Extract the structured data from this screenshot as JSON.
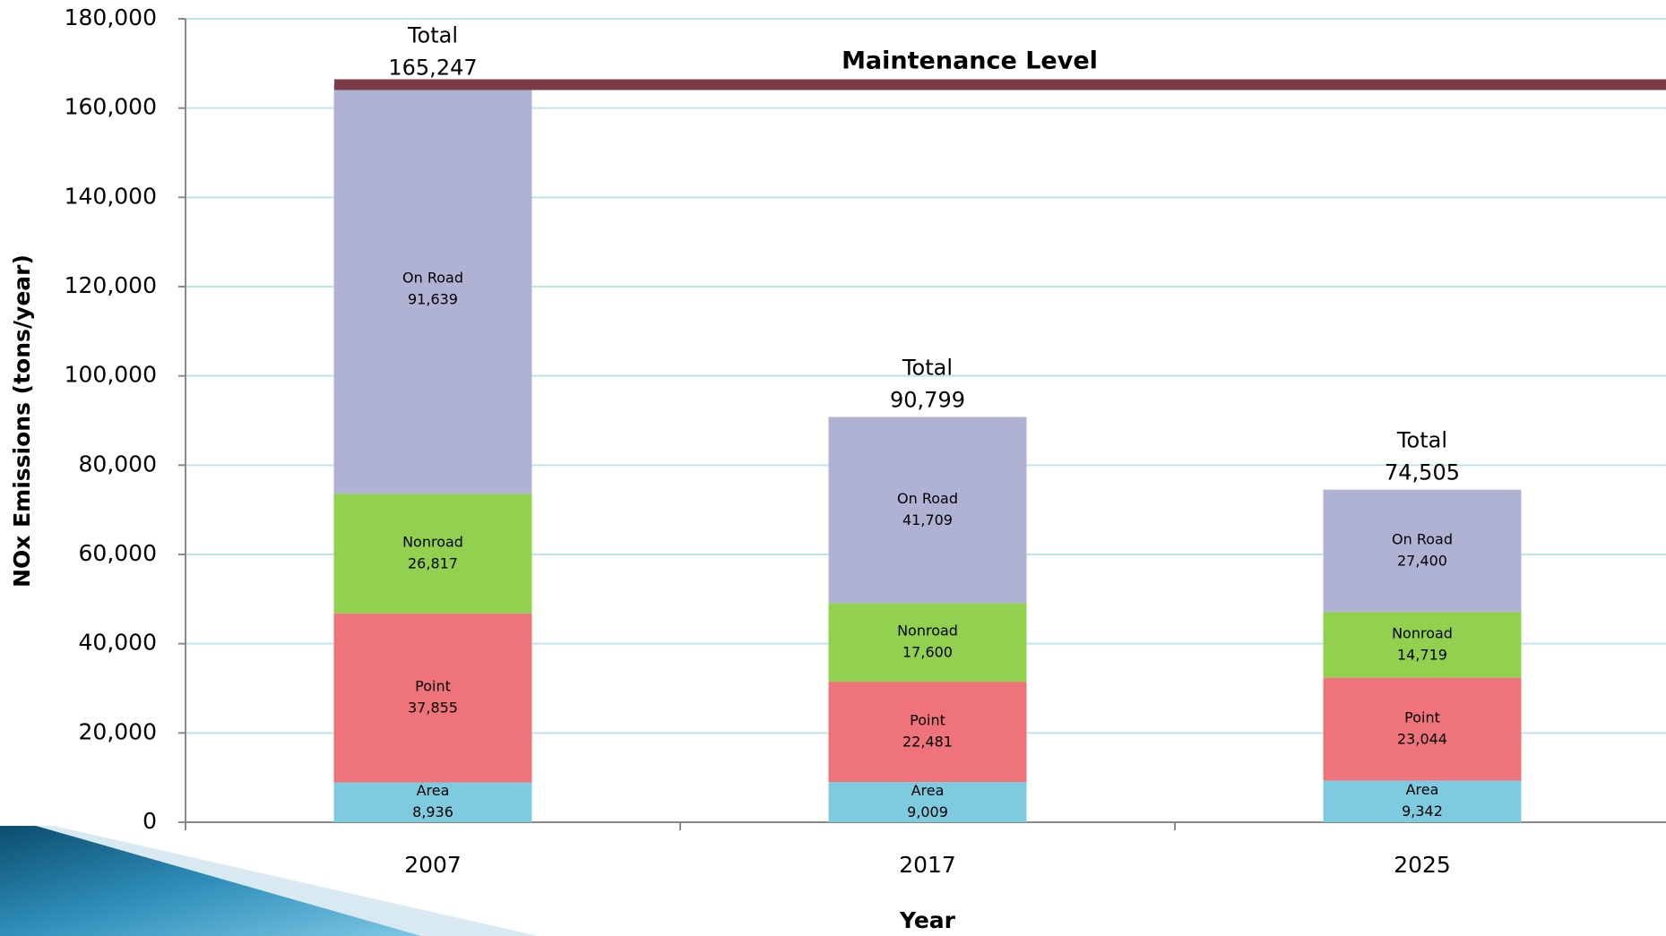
{
  "chart_data": {
    "type": "stacked_bar",
    "y_label": "NOx Emissions (tons/year)",
    "x_label": "Year",
    "categories": [
      "2007",
      "2017",
      "2025"
    ],
    "series": [
      {
        "name": "Area",
        "color": "#7ecbe0",
        "values": [
          8936,
          9009,
          9342
        ],
        "value_labels": [
          "8,936",
          "9,009",
          "9,342"
        ]
      },
      {
        "name": "Point",
        "color": "#ee737a",
        "values": [
          37855,
          22481,
          23044
        ],
        "value_labels": [
          "37,855",
          "22,481",
          "23,044"
        ]
      },
      {
        "name": "Nonroad",
        "color": "#92d050",
        "values": [
          26817,
          17600,
          14719
        ],
        "value_labels": [
          "26,817",
          "17,600",
          "14,719"
        ]
      },
      {
        "name": "On Road",
        "color": "#b0b2d4",
        "values": [
          91639,
          41709,
          27400
        ],
        "value_labels": [
          "91,639",
          "41,709",
          "27,400"
        ]
      }
    ],
    "totals": {
      "label": "Total",
      "values": [
        165247,
        90799,
        74505
      ],
      "value_labels": [
        "165,247",
        "90,799",
        "74,505"
      ]
    },
    "maintenance_level": {
      "label": "Maintenance Level",
      "value": 165247,
      "color": "#7b3a46"
    },
    "ylim": [
      0,
      180000
    ],
    "yticks": [
      0,
      {
        "value": 20000,
        "label": "20,000"
      },
      {
        "value": 40000,
        "label": "40,000"
      },
      {
        "value": 60000,
        "label": "60,000"
      },
      {
        "value": 80000,
        "label": "80,000"
      },
      {
        "value": 100000,
        "label": "100,000"
      },
      {
        "value": 120000,
        "label": "120,000"
      },
      {
        "value": 140000,
        "label": "140,000"
      },
      {
        "value": 160000,
        "label": "160,000"
      },
      {
        "value": 180000,
        "label": "180,000"
      }
    ],
    "grid": true
  }
}
